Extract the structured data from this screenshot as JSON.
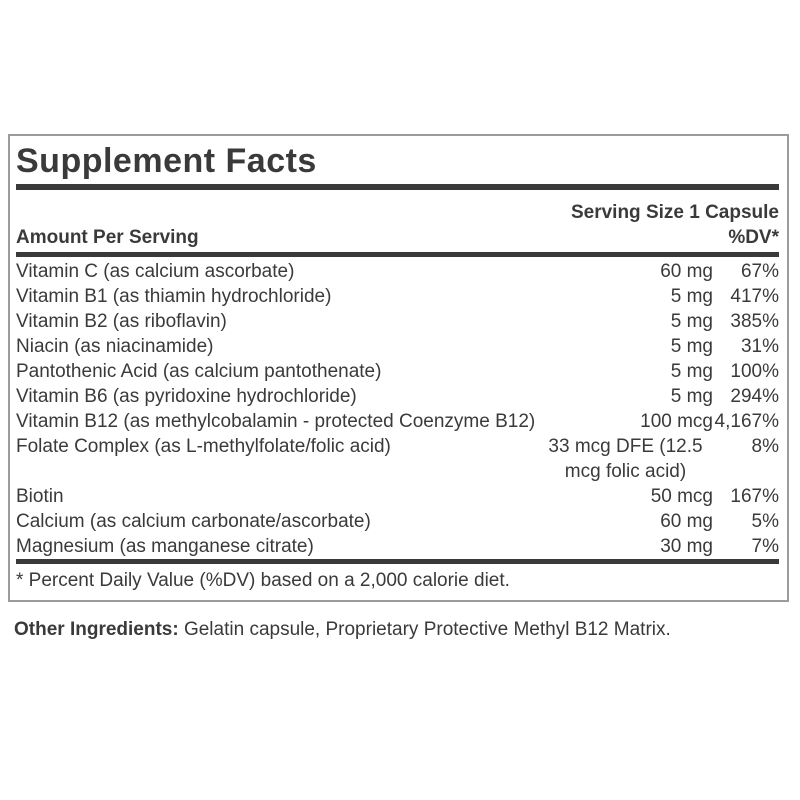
{
  "label": {
    "title": "Supplement Facts",
    "serving_size": "Serving Size 1 Capsule",
    "columns": {
      "amount_header": "Amount Per Serving",
      "dv_header": "%DV*"
    },
    "rows": [
      {
        "name": "Vitamin C (as calcium ascorbate)",
        "amount": "60 mg",
        "dv": "67%"
      },
      {
        "name": "Vitamin B1 (as thiamin hydrochloride)",
        "amount": "5 mg",
        "dv": "417%"
      },
      {
        "name": "Vitamin B2 (as riboflavin)",
        "amount": "5 mg",
        "dv": "385%"
      },
      {
        "name": "Niacin (as niacinamide)",
        "amount": "5 mg",
        "dv": "31%"
      },
      {
        "name": "Pantothenic Acid (as calcium pantothenate)",
        "amount": "5 mg",
        "dv": "100%"
      },
      {
        "name": "Vitamin B6 (as pyridoxine hydrochloride)",
        "amount": "5 mg",
        "dv": "294%"
      },
      {
        "name": "Vitamin B12 (as methylcobalamin - protected Coenzyme B12)",
        "amount": "100 mcg",
        "dv": "4,167%"
      },
      {
        "name": "Folate Complex (as L-methylfolate/folic acid)",
        "amount": "33 mcg DFE (12.5 mcg folic acid)",
        "dv": "8%"
      },
      {
        "name": "Biotin",
        "amount": "50 mcg",
        "dv": "167%"
      },
      {
        "name": "Calcium (as calcium carbonate/ascorbate)",
        "amount": "60 mg",
        "dv": "5%"
      },
      {
        "name": "Magnesium (as manganese citrate)",
        "amount": "30 mg",
        "dv": "7%"
      }
    ],
    "footnote": "* Percent Daily Value (%DV) based on a 2,000 calorie diet."
  },
  "other_ingredients": {
    "label": "Other Ingredients:",
    "text": " Gelatin capsule, Proprietary Protective Methyl B12 Matrix."
  },
  "colors": {
    "text": "#3a3a3a",
    "rule": "#3a3a3a",
    "border": "#9b9b9b",
    "background": "#ffffff"
  }
}
